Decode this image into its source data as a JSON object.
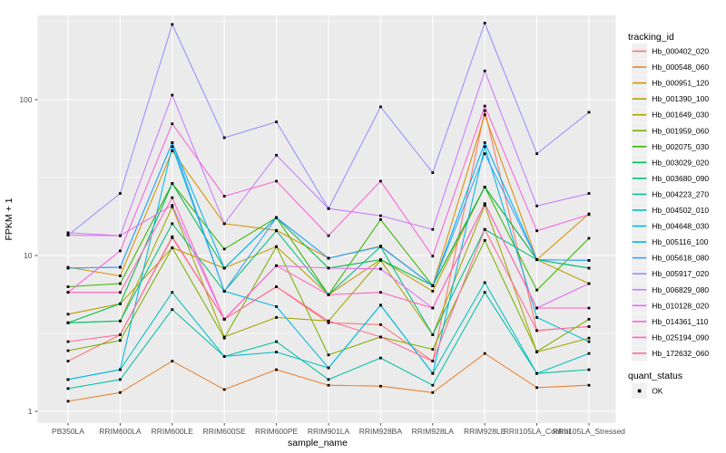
{
  "figure": {
    "bg": "#FFFFFF"
  },
  "chart_data": {
    "type": "line",
    "title": "",
    "xlabel": "sample_name",
    "ylabel": "FPKM + 1",
    "yscale": "log10",
    "ylim": [
      0.85,
      350
    ],
    "grid": true,
    "legend_position": "right",
    "panel_bg": "#EBEBEB",
    "grid_color": "#FFFFFF",
    "axis_text_color": "#4D4D4D",
    "axis_title_color": "#000000",
    "point_color": "#000000",
    "yticks": [
      {
        "value": 1,
        "label": "1"
      },
      {
        "value": 10,
        "label": "10"
      },
      {
        "value": 100,
        "label": "100"
      }
    ],
    "minor_yticks": [
      3.162,
      31.62,
      316.2
    ],
    "categories": [
      "PB350LA",
      "RRIM600LA",
      "RRIM600LE",
      "RRIM600SE",
      "RRIM600PE",
      "RRIM901LA",
      "RRIM928BA",
      "RRIM928LA",
      "RRIM928LE",
      "RRII105LA_Control",
      "RRII105LA_Stressed"
    ],
    "legend": {
      "title": "tracking_id"
    },
    "legend2": {
      "title": "quant_status",
      "items": [
        {
          "label": "OK",
          "marker": "black-square",
          "color": "#000000"
        }
      ]
    },
    "series": [
      {
        "name": "Hb_000402_020",
        "color": "#F8766D",
        "values": [
          2.1,
          3.1,
          13,
          3.9,
          6.3,
          3.7,
          3.6,
          2.1,
          85,
          3.3,
          3.5
        ]
      },
      {
        "name": "Hb_000548_060",
        "color": "#EA8331",
        "values": [
          1.16,
          1.32,
          2.1,
          1.38,
          1.85,
          1.47,
          1.45,
          1.32,
          2.35,
          1.42,
          1.47
        ]
      },
      {
        "name": "Hb_000951_120",
        "color": "#D89000",
        "values": [
          8.4,
          7.4,
          47,
          16,
          14.5,
          9.6,
          11.5,
          6.4,
          80,
          9.4,
          18.5
        ]
      },
      {
        "name": "Hb_001390_100",
        "color": "#C09B00",
        "values": [
          4.2,
          4.9,
          11.2,
          8.3,
          11.4,
          5.6,
          9.4,
          5.9,
          27.5,
          9.4,
          6.6
        ]
      },
      {
        "name": "Hb_001649_030",
        "color": "#A3A500",
        "values": [
          3.7,
          3.8,
          20.5,
          3.0,
          4.0,
          3.8,
          9.3,
          3.1,
          21,
          2.4,
          2.95
        ]
      },
      {
        "name": "Hb_001959_060",
        "color": "#7CAE00",
        "values": [
          2.45,
          2.85,
          11.2,
          2.95,
          11.4,
          2.3,
          3.0,
          2.5,
          12.5,
          2.42,
          3.9
        ]
      },
      {
        "name": "Hb_002075_030",
        "color": "#39B600",
        "values": [
          6.3,
          6.6,
          29,
          11,
          17.5,
          5.6,
          17,
          6.4,
          27.5,
          6.0,
          12.9
        ]
      },
      {
        "name": "Hb_003029_020",
        "color": "#00BB4E",
        "values": [
          3.7,
          4.9,
          29,
          8.3,
          17.5,
          8.3,
          9.4,
          6.4,
          27.5,
          9.4,
          8.3
        ]
      },
      {
        "name": "Hb_003680_090",
        "color": "#00BF7D",
        "values": [
          3.7,
          3.8,
          16,
          5.9,
          14.4,
          5.6,
          11.4,
          3.1,
          14.7,
          9.4,
          8.3
        ]
      },
      {
        "name": "Hb_004223_270",
        "color": "#00C1A3",
        "values": [
          1.4,
          1.6,
          4.5,
          2.25,
          2.8,
          1.6,
          2.2,
          1.47,
          5.8,
          1.75,
          1.85
        ]
      },
      {
        "name": "Hb_004502_010",
        "color": "#00BFC4",
        "values": [
          1.6,
          1.85,
          5.8,
          2.25,
          2.4,
          1.9,
          4.8,
          1.75,
          6.7,
          1.75,
          2.35
        ]
      },
      {
        "name": "Hb_004648_030",
        "color": "#00BAE0",
        "values": [
          1.6,
          1.85,
          50,
          5.9,
          4.7,
          1.9,
          4.8,
          1.75,
          50,
          4.0,
          2.8
        ]
      },
      {
        "name": "Hb_005116_100",
        "color": "#00B0F6",
        "values": [
          8.3,
          8.4,
          53,
          8.3,
          17.5,
          9.6,
          11.4,
          6.4,
          53,
          9.4,
          9.3
        ]
      },
      {
        "name": "Hb_005618_080",
        "color": "#35A2FF",
        "values": [
          8.3,
          8.4,
          53,
          5.9,
          17.5,
          9.6,
          11.4,
          6.4,
          45,
          9.4,
          9.3
        ]
      },
      {
        "name": "Hb_005917_020",
        "color": "#9590FF",
        "values": [
          13.5,
          25,
          304,
          57,
          72,
          20,
          90,
          34,
          310,
          45,
          83
        ]
      },
      {
        "name": "Hb_006829_080",
        "color": "#C77CFF",
        "values": [
          14,
          13.4,
          107,
          16,
          44,
          20,
          18,
          14.7,
          153,
          20.8,
          25
        ]
      },
      {
        "name": "Hb_010128_020",
        "color": "#E76BF3",
        "values": [
          13.5,
          13.4,
          21,
          3.9,
          8.6,
          8.3,
          8.2,
          4.6,
          21.5,
          4.6,
          6.6
        ]
      },
      {
        "name": "Hb_014361_110",
        "color": "#FA62DB",
        "values": [
          5.8,
          10.7,
          70,
          24,
          30,
          13.4,
          30,
          9.9,
          91,
          14.4,
          18.3
        ]
      },
      {
        "name": "Hb_025194_090",
        "color": "#FF62BC",
        "values": [
          5.8,
          5.8,
          23.5,
          3.9,
          8.6,
          5.6,
          5.8,
          4.6,
          21.5,
          4.6,
          4.6
        ]
      },
      {
        "name": "Hb_172632_060",
        "color": "#FF6A98",
        "values": [
          2.8,
          3.1,
          13.2,
          3.9,
          6.3,
          3.8,
          3.0,
          2.1,
          14.7,
          3.3,
          3.5
        ]
      }
    ]
  }
}
